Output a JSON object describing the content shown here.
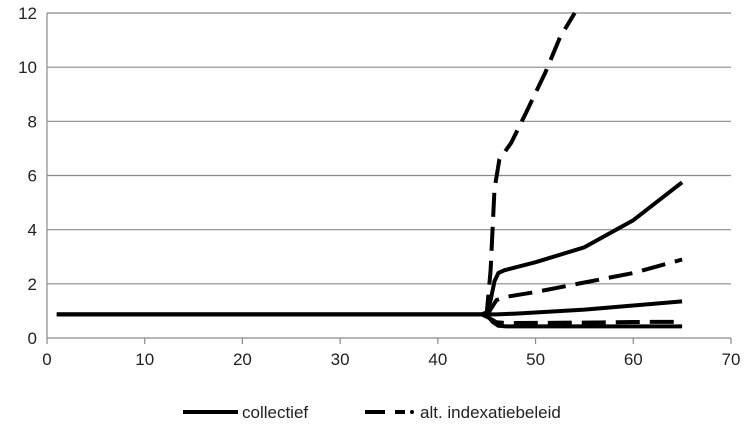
{
  "chart_data": {
    "type": "line",
    "title": "",
    "xlabel": "",
    "ylabel": "",
    "xlim": [
      0,
      70
    ],
    "ylim": [
      0,
      12
    ],
    "xticks": [
      0,
      10,
      20,
      30,
      40,
      50,
      60,
      70
    ],
    "yticks": [
      0,
      2,
      4,
      6,
      8,
      10,
      12
    ],
    "grid": "horizontal",
    "legend_position": "bottom",
    "legend": [
      {
        "label": "collectief",
        "style": "solid"
      },
      {
        "label": "alt. indexatiebeleid",
        "style": "dashed"
      }
    ],
    "line_color": "#000000",
    "grid_color": "#8a8a8a",
    "series": [
      {
        "group": "collectief",
        "style": "solid",
        "points": [
          [
            1,
            0.87
          ],
          [
            10,
            0.87
          ],
          [
            20,
            0.87
          ],
          [
            30,
            0.87
          ],
          [
            40,
            0.87
          ],
          [
            44.5,
            0.87
          ],
          [
            45,
            0.87
          ],
          [
            45.4,
            1.4
          ],
          [
            45.8,
            2.1
          ],
          [
            46.2,
            2.4
          ],
          [
            46.8,
            2.5
          ],
          [
            50,
            2.8
          ],
          [
            55,
            3.35
          ],
          [
            60,
            4.35
          ],
          [
            65,
            5.75
          ]
        ]
      },
      {
        "group": "collectief",
        "style": "solid",
        "points": [
          [
            1,
            0.87
          ],
          [
            20,
            0.87
          ],
          [
            40,
            0.87
          ],
          [
            44.5,
            0.87
          ],
          [
            45,
            0.87
          ],
          [
            46,
            0.87
          ],
          [
            48,
            0.9
          ],
          [
            55,
            1.05
          ],
          [
            60,
            1.2
          ],
          [
            65,
            1.35
          ]
        ]
      },
      {
        "group": "collectief",
        "style": "solid",
        "points": [
          [
            1,
            0.87
          ],
          [
            20,
            0.87
          ],
          [
            40,
            0.87
          ],
          [
            44.5,
            0.87
          ],
          [
            45,
            0.85
          ],
          [
            45.6,
            0.6
          ],
          [
            46.2,
            0.45
          ],
          [
            47,
            0.43
          ],
          [
            55,
            0.43
          ],
          [
            65,
            0.43
          ]
        ]
      },
      {
        "group": "alt. indexatiebeleid",
        "style": "dashed",
        "points": [
          [
            44.5,
            0.87
          ],
          [
            45,
            0.9
          ],
          [
            45.4,
            2.5
          ],
          [
            45.8,
            5.5
          ],
          [
            46.3,
            6.6
          ],
          [
            47.5,
            7.2
          ],
          [
            49,
            8.3
          ],
          [
            51,
            9.8
          ],
          [
            52.5,
            11.1
          ],
          [
            54,
            12
          ]
        ]
      },
      {
        "group": "alt. indexatiebeleid",
        "style": "dashed",
        "points": [
          [
            44.5,
            0.87
          ],
          [
            45.3,
            1.0
          ],
          [
            46,
            1.4
          ],
          [
            47,
            1.52
          ],
          [
            50,
            1.7
          ],
          [
            55,
            2.05
          ],
          [
            60,
            2.4
          ],
          [
            65,
            2.9
          ]
        ]
      },
      {
        "group": "alt. indexatiebeleid",
        "style": "dashed",
        "points": [
          [
            44.5,
            0.87
          ],
          [
            45.2,
            0.75
          ],
          [
            46,
            0.58
          ],
          [
            47,
            0.55
          ],
          [
            55,
            0.57
          ],
          [
            60,
            0.59
          ],
          [
            65,
            0.6
          ]
        ]
      }
    ]
  }
}
